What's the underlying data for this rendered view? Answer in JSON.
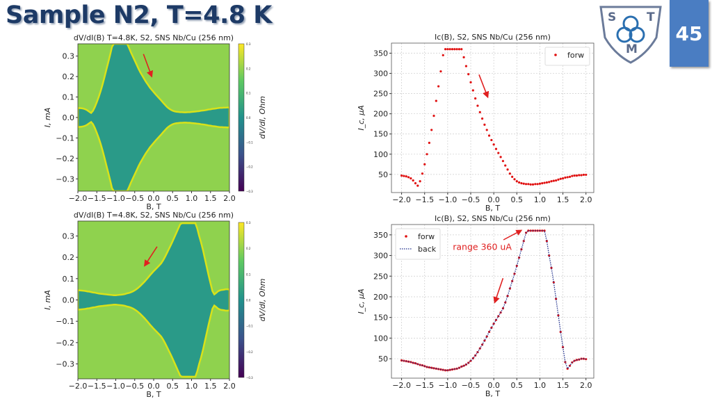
{
  "slide": {
    "title": "Sample N2, T=4.8 K",
    "page_number": "45",
    "logo": {
      "letters": [
        "S",
        "T",
        "M"
      ],
      "icon": "triquetra-shield-logo"
    }
  },
  "colors": {
    "title": "#1d3a66",
    "page_box": "#4a7dc2",
    "forw": "#e01010",
    "back": "#1a2a8a",
    "annotation": "#e02020"
  },
  "chart_data": [
    {
      "type": "heatmap",
      "title": "dV/dI(B) T=4.8K, S2, SNS Nb/Cu (256 nm)",
      "xlabel": "B, T",
      "ylabel": "I, mA",
      "xlim": [
        -2.0,
        2.0
      ],
      "ylim": [
        -0.36,
        0.36
      ],
      "xticks": [
        -2.0,
        -1.5,
        -1.0,
        -0.5,
        0.0,
        0.5,
        1.0,
        1.5,
        2.0
      ],
      "xticklabels": [
        "−2.0",
        "−1.5",
        "−1.0",
        "−0.5",
        "0.0",
        "0.5",
        "1.0",
        "1.5",
        "2.0"
      ],
      "yticks": [
        0.3,
        0.2,
        0.1,
        0.0,
        -0.1,
        -0.2,
        -0.3
      ],
      "yticklabels": [
        "0.3",
        "0.2",
        "0.1",
        "0.0",
        "−0.1",
        "−0.2",
        "−0.3"
      ],
      "colorbar": {
        "label": "dV/dI, Ohm",
        "range": [
          -0.3,
          0.3
        ],
        "colormap": "viridis",
        "ticks": [
          0.3,
          0.2,
          0.1,
          0.0,
          -0.1,
          -0.2,
          -0.3
        ],
        "ticklabels": [
          "0.3",
          "0.2",
          "0.1",
          "0.0",
          "−0.1",
          "−0.2",
          "−0.3"
        ]
      },
      "arrows": [
        {
          "from": [
            -0.27,
            0.31
          ],
          "to": [
            -0.05,
            0.2
          ]
        }
      ]
    },
    {
      "type": "heatmap",
      "title": "dV/dI(B) T=4.8K, S2, SNS Nb/Cu (256 nm)",
      "xlabel": "B, T",
      "ylabel": "I, mA",
      "xlim": [
        -2.0,
        2.0
      ],
      "ylim": [
        -0.37,
        0.37
      ],
      "xticks": [
        -2.0,
        -1.5,
        -1.0,
        -0.5,
        0.0,
        0.5,
        1.0,
        1.5,
        2.0
      ],
      "xticklabels": [
        "−2.0",
        "−1.5",
        "−1.0",
        "−0.5",
        "0.0",
        "0.5",
        "1.0",
        "1.5",
        "2.0"
      ],
      "yticks": [
        0.3,
        0.2,
        0.1,
        0.0,
        -0.1,
        -0.2,
        -0.3
      ],
      "yticklabels": [
        "0.3",
        "0.2",
        "0.1",
        "0.0",
        "−0.1",
        "−0.2",
        "−0.3"
      ],
      "colorbar": {
        "label": "dV/dI, Ohm",
        "range": [
          -0.3,
          0.3
        ],
        "colormap": "viridis",
        "ticks": [
          0.3,
          0.2,
          0.1,
          0.0,
          -0.1,
          -0.2,
          -0.3
        ],
        "ticklabels": [
          "0.3",
          "0.2",
          "0.1",
          "0.0",
          "−0.1",
          "−0.2",
          "−0.3"
        ]
      },
      "arrows": [
        {
          "from": [
            0.09,
            0.25
          ],
          "to": [
            -0.24,
            0.16
          ]
        }
      ]
    },
    {
      "type": "scatter",
      "title": "Ic(B), S2, SNS Nb/Cu (256 nm)",
      "xlabel": "B, T",
      "ylabel": "I_c, μA",
      "xlim": [
        -2.22,
        2.17
      ],
      "ylim": [
        5,
        375
      ],
      "grid": true,
      "legend": "top-right",
      "xticks": [
        -2.0,
        -1.5,
        -1.0,
        -0.5,
        0.0,
        0.5,
        1.0,
        1.5,
        2.0
      ],
      "xticklabels": [
        "−2.0",
        "−1.5",
        "−1.0",
        "−0.5",
        "0.0",
        "0.5",
        "1.0",
        "1.5",
        "2.0"
      ],
      "yticks": [
        50,
        100,
        150,
        200,
        250,
        300,
        350
      ],
      "yticklabels": [
        "50",
        "100",
        "150",
        "200",
        "250",
        "300",
        "350"
      ],
      "x": [
        -2.0,
        -1.95,
        -1.9,
        -1.85,
        -1.8,
        -1.75,
        -1.7,
        -1.65,
        -1.6,
        -1.55,
        -1.5,
        -1.45,
        -1.4,
        -1.35,
        -1.3,
        -1.25,
        -1.2,
        -1.15,
        -1.1,
        -1.05,
        -1.0,
        -0.95,
        -0.9,
        -0.85,
        -0.8,
        -0.75,
        -0.7,
        -0.65,
        -0.6,
        -0.55,
        -0.5,
        -0.45,
        -0.4,
        -0.35,
        -0.3,
        -0.25,
        -0.2,
        -0.15,
        -0.1,
        -0.05,
        0.0,
        0.05,
        0.1,
        0.15,
        0.2,
        0.25,
        0.3,
        0.35,
        0.4,
        0.45,
        0.5,
        0.55,
        0.6,
        0.65,
        0.7,
        0.75,
        0.8,
        0.85,
        0.9,
        0.95,
        1.0,
        1.05,
        1.1,
        1.15,
        1.2,
        1.25,
        1.3,
        1.35,
        1.4,
        1.45,
        1.5,
        1.55,
        1.6,
        1.65,
        1.7,
        1.75,
        1.8,
        1.85,
        1.9,
        1.95,
        2.0
      ],
      "series": [
        {
          "name": "forw",
          "style": "dots",
          "color": "#e01010",
          "values": [
            47,
            46,
            45,
            43,
            40,
            35,
            28,
            22,
            33,
            52,
            75,
            100,
            128,
            160,
            195,
            232,
            268,
            305,
            345,
            360,
            360,
            360,
            360,
            360,
            360,
            360,
            360,
            340,
            318,
            298,
            278,
            258,
            238,
            220,
            204,
            188,
            173,
            160,
            146,
            135,
            124,
            113,
            103,
            93,
            83,
            72,
            62,
            52,
            44,
            38,
            33,
            30,
            28,
            27,
            26,
            26,
            25,
            25,
            26,
            26,
            27,
            28,
            29,
            30,
            31,
            33,
            34,
            35,
            37,
            39,
            40,
            42,
            43,
            44,
            46,
            47,
            47,
            48,
            48,
            49,
            49
          ]
        }
      ],
      "arrows": [
        {
          "from": [
            -0.32,
            297
          ],
          "to": [
            -0.13,
            241
          ]
        }
      ]
    },
    {
      "type": "scatter",
      "title": "Ic(B), S2, SNS Nb/Cu (256 nm)",
      "xlabel": "B, T",
      "ylabel": "I_c, μA",
      "xlim": [
        -2.22,
        2.17
      ],
      "ylim": [
        3,
        375
      ],
      "grid": true,
      "legend": "top-left",
      "xticks": [
        -2.0,
        -1.5,
        -1.0,
        -0.5,
        0.0,
        0.5,
        1.0,
        1.5,
        2.0
      ],
      "xticklabels": [
        "−2.0",
        "−1.5",
        "−1.0",
        "−0.5",
        "0.0",
        "0.5",
        "1.0",
        "1.5",
        "2.0"
      ],
      "yticks": [
        50,
        100,
        150,
        200,
        250,
        300,
        350
      ],
      "yticklabels": [
        "50",
        "100",
        "150",
        "200",
        "250",
        "300",
        "350"
      ],
      "x": [
        -2.0,
        -1.95,
        -1.9,
        -1.85,
        -1.8,
        -1.75,
        -1.7,
        -1.65,
        -1.6,
        -1.55,
        -1.5,
        -1.45,
        -1.4,
        -1.35,
        -1.3,
        -1.25,
        -1.2,
        -1.15,
        -1.1,
        -1.05,
        -1.0,
        -0.95,
        -0.9,
        -0.85,
        -0.8,
        -0.75,
        -0.7,
        -0.65,
        -0.6,
        -0.55,
        -0.5,
        -0.45,
        -0.4,
        -0.35,
        -0.3,
        -0.25,
        -0.2,
        -0.15,
        -0.1,
        -0.05,
        0.0,
        0.05,
        0.1,
        0.15,
        0.2,
        0.25,
        0.3,
        0.35,
        0.4,
        0.45,
        0.5,
        0.55,
        0.6,
        0.65,
        0.7,
        0.75,
        0.8,
        0.85,
        0.9,
        0.95,
        1.0,
        1.05,
        1.1,
        1.15,
        1.2,
        1.25,
        1.3,
        1.35,
        1.4,
        1.45,
        1.5,
        1.55,
        1.6,
        1.65,
        1.7,
        1.75,
        1.8,
        1.85,
        1.9,
        1.95,
        2.0
      ],
      "series": [
        {
          "name": "forw",
          "style": "dots",
          "color": "#e01010",
          "values": [
            46,
            45,
            44,
            43,
            42,
            40,
            39,
            37,
            35,
            34,
            32,
            30,
            29,
            28,
            27,
            26,
            25,
            24,
            23,
            22,
            22,
            23,
            24,
            25,
            26,
            28,
            31,
            33,
            36,
            40,
            45,
            51,
            58,
            66,
            75,
            84,
            94,
            104,
            115,
            125,
            135,
            144,
            153,
            162,
            172,
            186,
            202,
            220,
            238,
            256,
            275,
            295,
            315,
            335,
            355,
            360,
            360,
            360,
            360,
            360,
            360,
            360,
            360,
            335,
            300,
            270,
            235,
            195,
            155,
            115,
            78,
            42,
            26,
            33,
            41,
            45,
            47,
            48,
            50,
            50,
            49
          ]
        },
        {
          "name": "back",
          "style": "dotted-line",
          "color": "#1a2a8a",
          "values": [
            46,
            45,
            44,
            43,
            42,
            40,
            39,
            37,
            35,
            34,
            32,
            30,
            29,
            28,
            27,
            26,
            25,
            24,
            23,
            22,
            22,
            23,
            24,
            25,
            26,
            28,
            31,
            33,
            36,
            40,
            45,
            51,
            58,
            66,
            75,
            84,
            94,
            104,
            115,
            125,
            135,
            144,
            153,
            162,
            172,
            186,
            202,
            220,
            238,
            256,
            275,
            295,
            315,
            335,
            355,
            360,
            360,
            360,
            360,
            360,
            360,
            360,
            360,
            335,
            300,
            270,
            235,
            195,
            155,
            115,
            78,
            42,
            26,
            33,
            41,
            45,
            47,
            48,
            50,
            50,
            49
          ]
        }
      ],
      "annotations": [
        {
          "text": "range 360 uA",
          "at": [
            -0.25,
            320
          ],
          "arrow_from": [
            0.21,
            338
          ],
          "arrow_to": [
            0.6,
            361
          ]
        }
      ],
      "arrows": [
        {
          "from": [
            0.2,
            245
          ],
          "to": [
            0.02,
            186
          ]
        }
      ]
    }
  ]
}
